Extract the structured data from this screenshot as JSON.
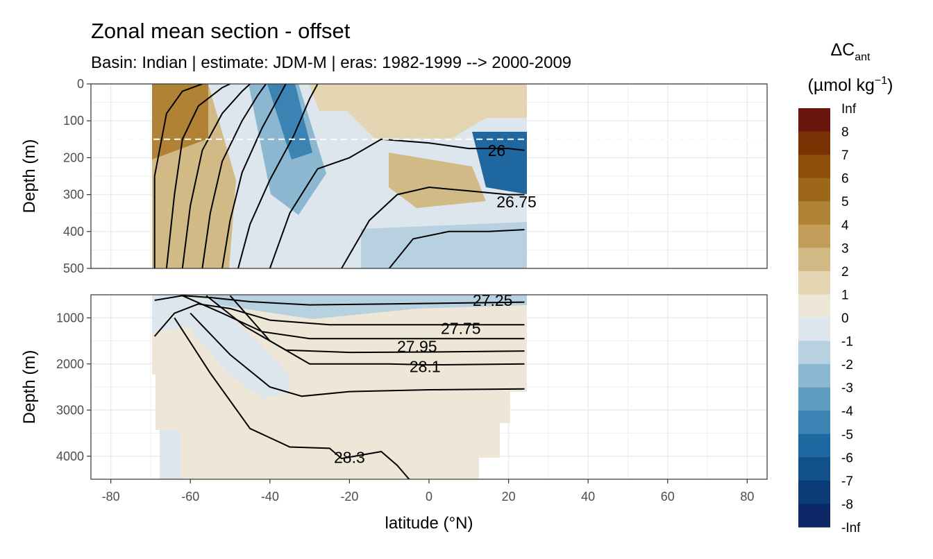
{
  "chart_data": {
    "type": "heatmap",
    "title": "Zonal mean section - offset",
    "subtitle": "Basin: Indian | estimate: JDM-M | eras: 1982-1999 --> 2000-2009",
    "xlabel": "latitude (°N)",
    "ylabel": "Depth (m)",
    "xlim": [
      -85,
      85
    ],
    "x_ticks": [
      -80,
      -60,
      -40,
      -20,
      0,
      20,
      40,
      60,
      80
    ],
    "data_lat_range": [
      -69,
      24
    ],
    "reference_depth_line": 150,
    "grid": true,
    "legend": {
      "position": "right",
      "title": "ΔC",
      "title_subscript": "ant",
      "unit_prefix": "(µmol kg",
      "unit_superscript": "−1",
      "unit_suffix": ")",
      "labels": [
        "Inf",
        "8",
        "7",
        "6",
        "5",
        "4",
        "3",
        "2",
        "1",
        "0",
        "-1",
        "-2",
        "-3",
        "-4",
        "-5",
        "-6",
        "-7",
        "-8",
        "-Inf"
      ],
      "colors": [
        "#67170b",
        "#7a3204",
        "#8c4e08",
        "#9c6718",
        "#b08235",
        "#c29d5a",
        "#d2ba86",
        "#e3d4b2",
        "#eee6d6",
        "#dce6ec",
        "#b8d1e1",
        "#8bb7d0",
        "#5e9cc0",
        "#3a83b2",
        "#1f67a0",
        "#12508c",
        "#0b3c78",
        "#0b2766",
        "#091651"
      ]
    },
    "panels": [
      {
        "name": "upper",
        "ylim": [
          500,
          0
        ],
        "y_ticks": [
          0,
          100,
          200,
          300,
          400,
          500
        ],
        "contour_labels": [
          {
            "text": "26",
            "lat": 17,
            "depth": 180
          },
          {
            "text": "26.75",
            "lat": 22,
            "depth": 320
          }
        ],
        "isopycnals_lat": [
          -69,
          -66,
          -57,
          -43,
          -33,
          -20,
          -10,
          0,
          10,
          20,
          24
        ]
      },
      {
        "name": "lower",
        "ylim": [
          4500,
          500
        ],
        "y_ticks": [
          1000,
          2000,
          3000,
          4000
        ],
        "contour_labels": [
          {
            "text": "27.25",
            "lat": 16,
            "depth": 620
          },
          {
            "text": "27.75",
            "lat": 8,
            "depth": 1230
          },
          {
            "text": "27.95",
            "lat": -3,
            "depth": 1620
          },
          {
            "text": "28.1",
            "lat": -1,
            "depth": 2060
          },
          {
            "text": "28.3",
            "lat": -20,
            "depth": 4030
          }
        ]
      }
    ]
  }
}
